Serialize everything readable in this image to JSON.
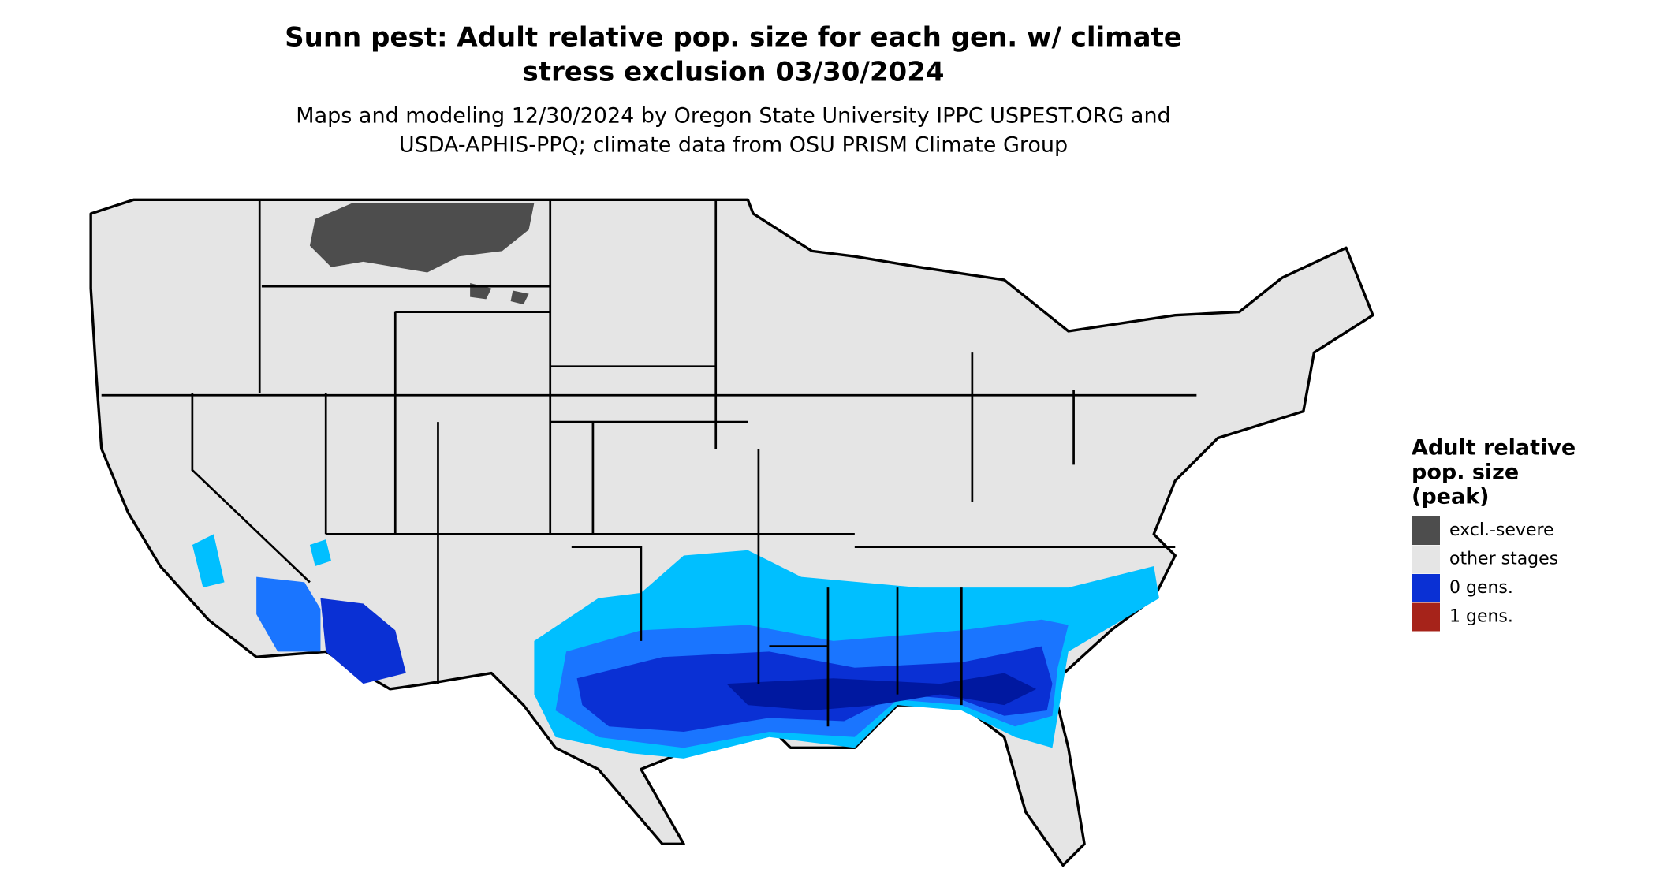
{
  "title_lines": [
    "Sunn pest: Adult relative pop. size for each gen. w/ climate",
    "stress exclusion 03/30/2024"
  ],
  "subtitle_lines": [
    "Maps and modeling 12/30/2024 by Oregon State University IPPC USPEST.ORG and",
    "USDA-APHIS-PPQ; climate data from OSU PRISM Climate Group"
  ],
  "legend": {
    "title_lines": [
      "Adult relative",
      "pop. size",
      "(peak)"
    ],
    "items": [
      {
        "label": "excl.-severe",
        "color": "#4d4d4d"
      },
      {
        "label": "other stages",
        "color": "#e5e5e5"
      },
      {
        "label": "0 gens.",
        "color": "#0a30d4"
      },
      {
        "label": "1 gens.",
        "color": "#a6231a"
      }
    ]
  }
}
